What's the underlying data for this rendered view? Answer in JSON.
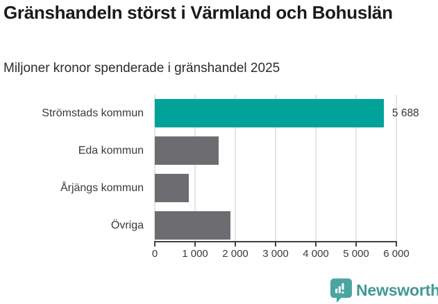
{
  "header": {
    "title": "Gränshandeln störst i Värmland och Bohuslän",
    "subtitle": "Miljoner kronor spenderade i gränshandel 2025"
  },
  "chart_data": {
    "type": "bar",
    "orientation": "horizontal",
    "title": "Gränshandeln störst i Värmland och Bohuslän",
    "subtitle": "Miljoner kronor spenderade i gränshandel 2025",
    "categories": [
      "Strömstads kommun",
      "Eda kommun",
      "Årjängs kommun",
      "Övriga"
    ],
    "values": [
      5688,
      1580,
      840,
      1880
    ],
    "value_labels": [
      "5 688",
      "",
      "",
      ""
    ],
    "xlim": [
      0,
      6000
    ],
    "xticks": [
      0,
      1000,
      2000,
      3000,
      4000,
      5000,
      6000
    ],
    "xtick_labels": [
      "0",
      "1 000",
      "2 000",
      "3 000",
      "4 000",
      "5 000",
      "6 000"
    ],
    "bar_colors": [
      "#00a29a",
      "#6d6d71",
      "#6d6d71",
      "#6d6d71"
    ],
    "grid": "vertical",
    "legend": "none"
  },
  "colors": {
    "accent_teal": "#00a29a",
    "bar_gray": "#6d6d71",
    "axis": "#404040",
    "gridline": "#e4e4e4",
    "brand_teal": "#419995"
  },
  "footer": {
    "brand": "Newsworthy"
  }
}
